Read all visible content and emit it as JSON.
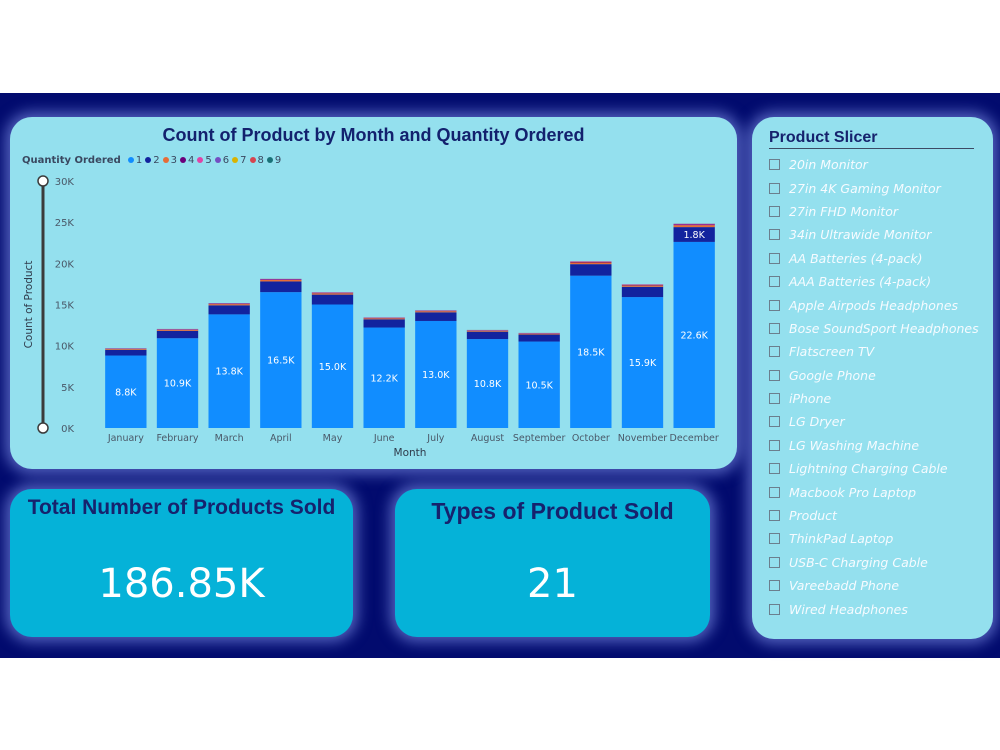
{
  "colors": {
    "dashboard_bg": "#020b6e",
    "card_bg": "#94e0ee",
    "kpi_bg": "#05b2d8",
    "title_text": "#16226d"
  },
  "chart_data": {
    "type": "bar",
    "stacked": true,
    "title": "Count of Product by Month and Quantity Ordered",
    "legend_title": "Quantity Ordered",
    "legend_position": "top-left",
    "xlabel": "Month",
    "ylabel": "Count of Product",
    "ylim": [
      0,
      30000
    ],
    "yticks": [
      0,
      5000,
      10000,
      15000,
      20000,
      25000,
      30000
    ],
    "ytick_labels": [
      "0K",
      "5K",
      "10K",
      "15K",
      "20K",
      "25K",
      "30K"
    ],
    "categories": [
      "January",
      "February",
      "March",
      "April",
      "May",
      "June",
      "July",
      "August",
      "September",
      "October",
      "November",
      "December"
    ],
    "series": [
      {
        "name": "1",
        "color": "#118dff",
        "values": [
          8800,
          10900,
          13800,
          16500,
          15000,
          12200,
          13000,
          10800,
          10500,
          18500,
          15900,
          22600
        ],
        "labels": [
          "8.8K",
          "10.9K",
          "13.8K",
          "16.5K",
          "15.0K",
          "12.2K",
          "13.0K",
          "10.8K",
          "10.5K",
          "18.5K",
          "15.9K",
          "22.6K"
        ]
      },
      {
        "name": "2",
        "color": "#12239e",
        "values": [
          700,
          900,
          1100,
          1300,
          1200,
          1000,
          1050,
          900,
          850,
          1400,
          1250,
          1800
        ],
        "labels": [
          "",
          "",
          "",
          "",
          "",
          "",
          "",
          "",
          "",
          "",
          "",
          "1.8K"
        ]
      },
      {
        "name": "3",
        "color": "#e66c37",
        "values": [
          100,
          130,
          150,
          180,
          165,
          130,
          140,
          120,
          110,
          200,
          170,
          240
        ],
        "labels": []
      },
      {
        "name": "4",
        "color": "#6b007b",
        "values": [
          40,
          50,
          60,
          70,
          65,
          55,
          55,
          45,
          45,
          80,
          70,
          95
        ],
        "labels": []
      },
      {
        "name": "5",
        "color": "#e044a7",
        "values": [
          25,
          30,
          35,
          40,
          38,
          30,
          32,
          28,
          27,
          45,
          40,
          55
        ],
        "labels": []
      },
      {
        "name": "6",
        "color": "#744ec2",
        "values": [
          10,
          12,
          14,
          16,
          15,
          12,
          13,
          11,
          11,
          18,
          16,
          22
        ],
        "labels": []
      },
      {
        "name": "7",
        "color": "#d9b300",
        "values": [
          5,
          6,
          7,
          8,
          7,
          6,
          6,
          5,
          5,
          9,
          8,
          10
        ],
        "labels": []
      },
      {
        "name": "8",
        "color": "#d64550",
        "values": [
          3,
          4,
          4,
          5,
          5,
          4,
          4,
          3,
          3,
          5,
          5,
          6
        ],
        "labels": []
      },
      {
        "name": "9",
        "color": "#197278",
        "values": [
          2,
          2,
          3,
          3,
          3,
          2,
          2,
          2,
          2,
          3,
          3,
          4
        ],
        "labels": []
      }
    ]
  },
  "kpis": {
    "total_title": "Total Number of Products Sold",
    "total_value": "186.85K",
    "types_title": "Types of Product Sold",
    "types_value": "21"
  },
  "slicer": {
    "title": "Product Slicer",
    "items": [
      "20in Monitor",
      "27in 4K Gaming Monitor",
      "27in FHD Monitor",
      "34in Ultrawide Monitor",
      "AA Batteries (4-pack)",
      "AAA Batteries (4-pack)",
      "Apple Airpods Headphones",
      "Bose SoundSport Headphones",
      "Flatscreen TV",
      "Google Phone",
      "iPhone",
      "LG Dryer",
      "LG Washing Machine",
      "Lightning Charging Cable",
      "Macbook Pro Laptop",
      "Product",
      "ThinkPad Laptop",
      "USB-C Charging Cable",
      "Vareebadd Phone",
      "Wired Headphones"
    ]
  }
}
